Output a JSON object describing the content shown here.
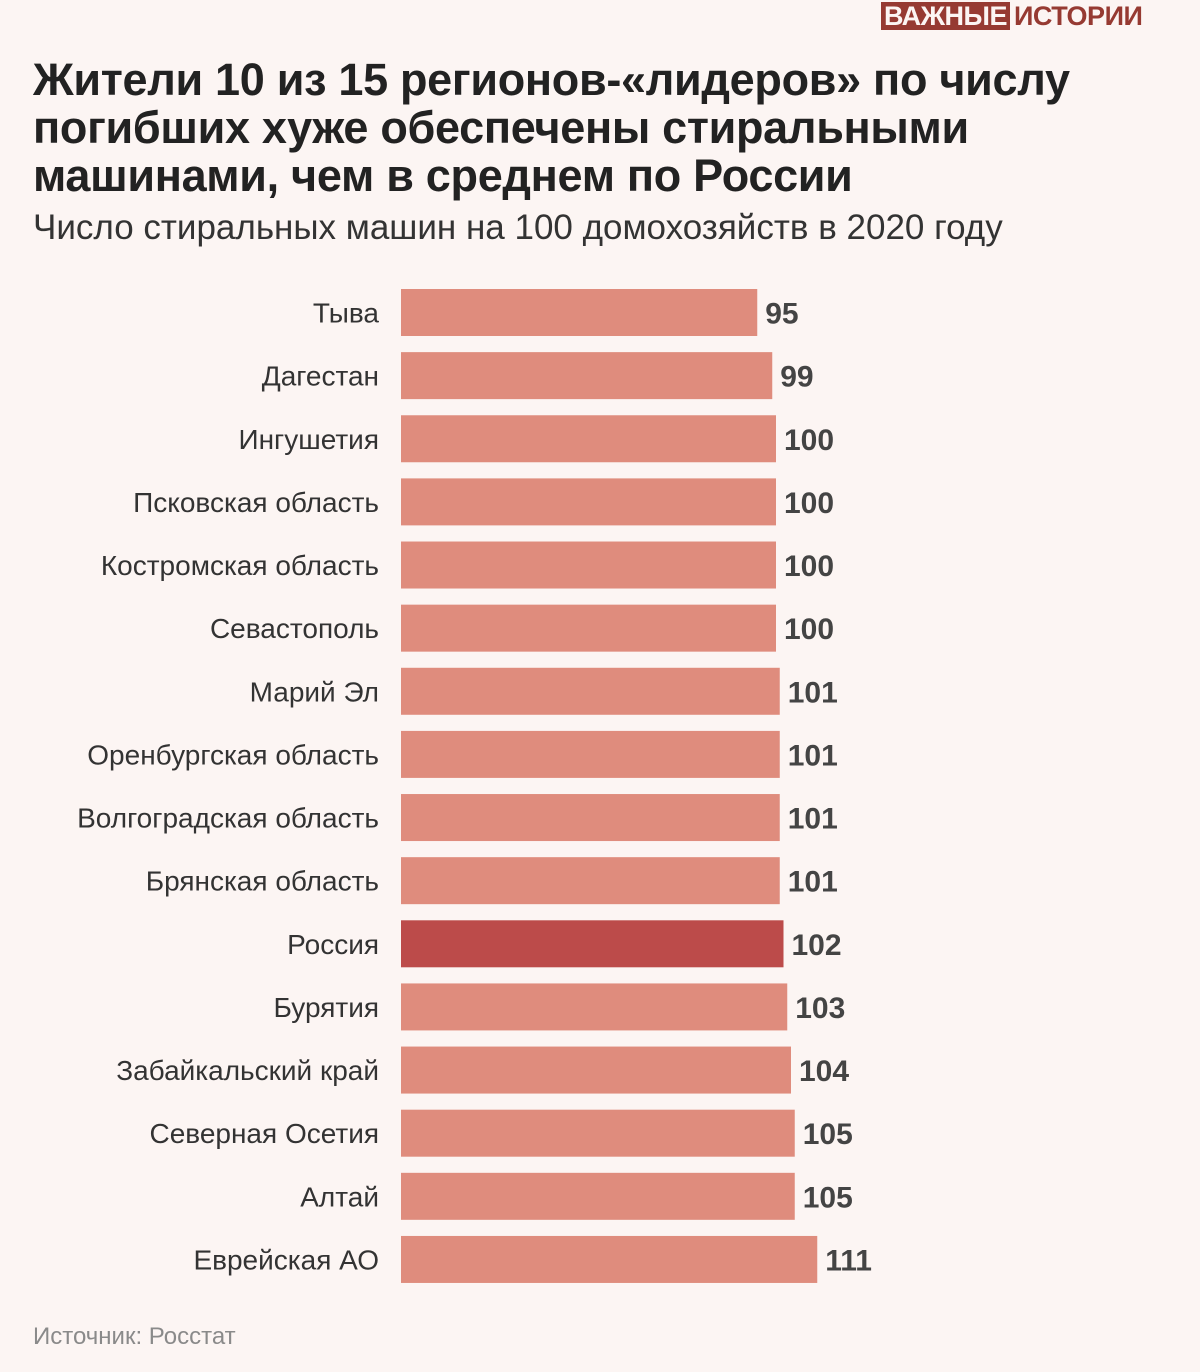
{
  "brand": {
    "logo_part1": "ВАЖНЫЕ",
    "logo_part2": "ИСТОРИИ",
    "color": "#963a32"
  },
  "chart_data": {
    "type": "bar",
    "orientation": "horizontal",
    "title": "Жители 10 из 15 регионов-«лидеров» по числу погибших хуже обеспечены стиральными машинами, чем в среднем по России",
    "subtitle": "Число стиральных машин на 100 домохозяйств в 2020 году",
    "categories": [
      "Тыва",
      "Дагестан",
      "Ингушетия",
      "Псковская область",
      "Костромская область",
      "Севастополь",
      "Марий Эл",
      "Оренбургская область",
      "Волгоградская область",
      "Брянская область",
      "Россия",
      "Бурятия",
      "Забайкальский край",
      "Северная Осетия",
      "Алтай",
      "Еврейская АО"
    ],
    "values": [
      95,
      99,
      100,
      100,
      100,
      100,
      101,
      101,
      101,
      101,
      102,
      103,
      104,
      105,
      105,
      111
    ],
    "highlight": "Россия",
    "xlim": [
      0,
      111
    ],
    "grid": false,
    "colors": {
      "bar": "#df8c7d",
      "highlight": "#bc4b4a",
      "value_label": "#444444",
      "category_label": "#333333"
    },
    "source": "Источник: Росстат"
  }
}
